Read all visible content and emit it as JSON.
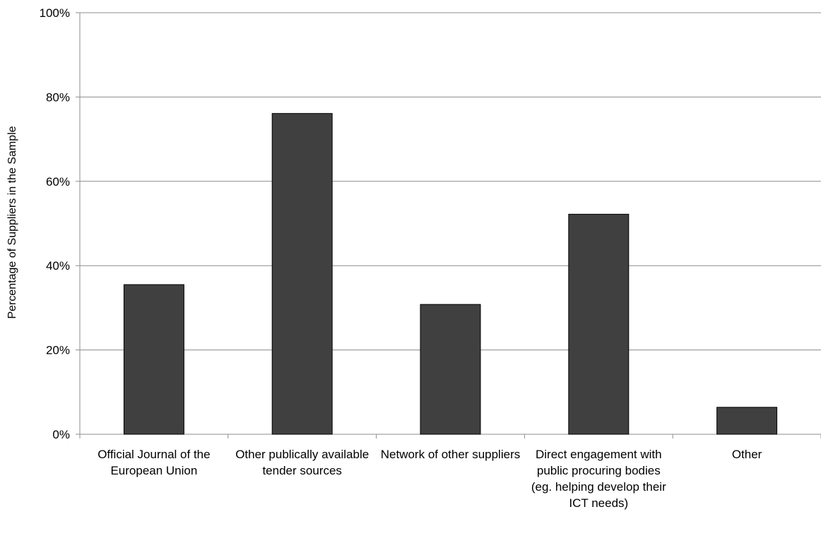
{
  "chart_data": {
    "type": "bar",
    "title": "",
    "xlabel": "",
    "ylabel": "Percentage of Suppliers in the Sample",
    "categories": [
      "Official Journal of the European Union",
      "Other publically available tender sources",
      "Network of other suppliers",
      "Direct engagement with public procuring bodies (eg. helping develop their ICT needs)",
      "Other"
    ],
    "values": [
      35.5,
      76.1,
      30.8,
      52.2,
      6.4
    ],
    "ylim": [
      0,
      100
    ],
    "yticks": [
      "0%",
      "20%",
      "40%",
      "60%",
      "80%",
      "100%"
    ],
    "grid": true,
    "bar_color": "#404040"
  }
}
